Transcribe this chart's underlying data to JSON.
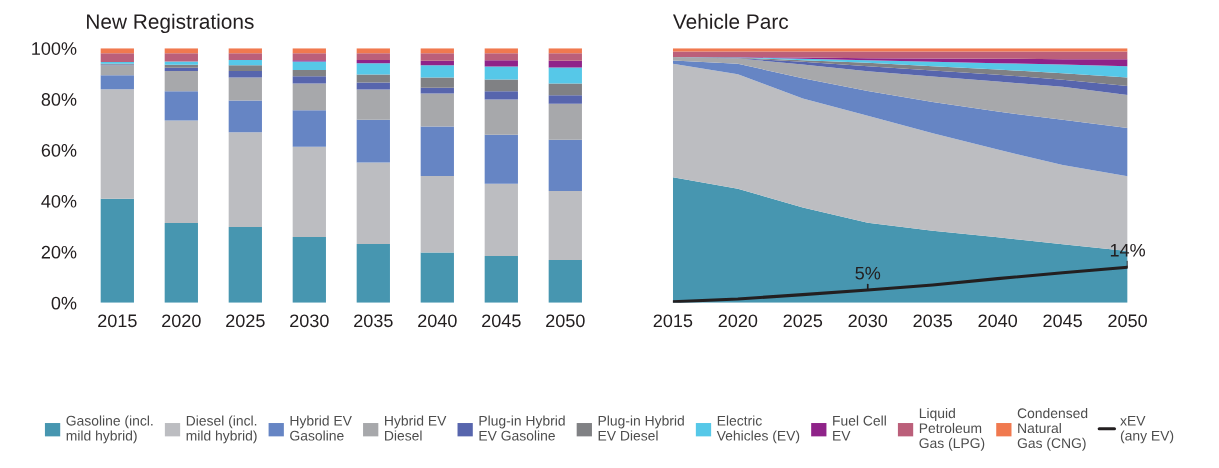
{
  "chart_data": [
    {
      "type": "bar",
      "title": "New Registrations",
      "stacked": true,
      "legend": "bottom",
      "grid": false,
      "categories": [
        "2015",
        "2020",
        "2025",
        "2030",
        "2035",
        "2040",
        "2045",
        "2050"
      ],
      "ylim": [
        0,
        100
      ],
      "yticks": [
        {
          "value": 0,
          "label": "0%"
        },
        {
          "value": 20,
          "label": "20%"
        },
        {
          "value": 40,
          "label": "40%"
        },
        {
          "value": 60,
          "label": "60%"
        },
        {
          "value": 80,
          "label": "80%"
        },
        {
          "value": 100,
          "label": "100%"
        }
      ],
      "series": [
        {
          "name": "Gasoline (incl.\nmild hybrid)",
          "color": "#4796b0",
          "values": [
            40.9,
            31.3,
            29.8,
            25.8,
            23.1,
            19.8,
            18.4,
            16.8
          ]
        },
        {
          "name": "Diesel (incl.\nmild hybrid)",
          "color": "#bcbdc1",
          "values": [
            43.0,
            40.3,
            37.2,
            35.5,
            32.0,
            30.0,
            28.4,
            27.1
          ]
        },
        {
          "name": "Hybrid EV\nGasoline",
          "color": "#6685c4",
          "values": [
            5.5,
            11.5,
            12.5,
            14.3,
            16.8,
            19.4,
            19.2,
            20.1
          ]
        },
        {
          "name": "Hybrid EV\nDiesel",
          "color": "#a7a8ab",
          "values": [
            3.9,
            7.9,
            9.0,
            10.5,
            11.9,
            13.0,
            13.9,
            14.2
          ]
        },
        {
          "name": "Plug-in Hybrid\nEV Gasoline",
          "color": "#5765ad",
          "values": [
            0.3,
            1.3,
            2.5,
            2.9,
            2.7,
            2.3,
            3.2,
            3.3
          ]
        },
        {
          "name": "Plug-in Hybrid\nEV Diesel",
          "color": "#808184",
          "values": [
            0.3,
            1.2,
            2.3,
            2.4,
            3.2,
            4.0,
            4.6,
            4.6
          ]
        },
        {
          "name": "Electric\nVehicles (EV)",
          "color": "#56c8e8",
          "values": [
            0.7,
            1.3,
            2.1,
            3.4,
            4.4,
            4.8,
            5.1,
            6.3
          ]
        },
        {
          "name": "Fuel Cell\nEV",
          "color": "#8f2389",
          "values": [
            0,
            0,
            0,
            0.5,
            1.3,
            1.8,
            2.5,
            2.7
          ]
        },
        {
          "name": "Liquid\nPetroleum\nGas (LPG)",
          "color": "#bb5f7a",
          "values": [
            3.4,
            3.2,
            2.6,
            2.7,
            2.6,
            2.9,
            2.7,
            2.9
          ]
        },
        {
          "name": "Condensed\nNatural\nGas (CNG)",
          "color": "#f0794f",
          "values": [
            2.0,
            2.0,
            2.0,
            2.0,
            2.0,
            2.0,
            2.0,
            2.0
          ]
        }
      ]
    },
    {
      "type": "area",
      "title": "Vehicle Parc",
      "stacked": true,
      "legend": "bottom",
      "grid": false,
      "tick_labels": "x",
      "x": [
        2015,
        2020,
        2025,
        2030,
        2035,
        2040,
        2045,
        2050
      ],
      "xlim": [
        2015,
        2050
      ],
      "xticks": [
        2015,
        2020,
        2025,
        2030,
        2035,
        2040,
        2045,
        2050
      ],
      "ylim": [
        0,
        100
      ],
      "annotations": [
        {
          "text": "5%",
          "x": 2030,
          "y": 5
        },
        {
          "text": "14%",
          "x": 2050,
          "y": 14
        }
      ],
      "series": [
        {
          "name": "Gasoline (incl.\nmild hybrid)",
          "color": "#4796b0",
          "values": [
            49.3,
            44.8,
            37.4,
            31.4,
            28.3,
            25.7,
            23.0,
            20.3
          ]
        },
        {
          "name": "Diesel (incl.\nmild hybrid)",
          "color": "#bcbdc1",
          "values": [
            44.6,
            45.0,
            42.8,
            42.1,
            38.3,
            34.5,
            31.1,
            29.4
          ]
        },
        {
          "name": "Hybrid EV\nGasoline",
          "color": "#6685c4",
          "values": [
            1.3,
            4.1,
            8.0,
            9.7,
            12.3,
            14.9,
            17.8,
            19.0
          ]
        },
        {
          "name": "Hybrid EV\nDiesel",
          "color": "#a7a8ab",
          "values": [
            1.3,
            2.1,
            5.4,
            7.7,
            10.0,
            11.8,
            13.0,
            12.9
          ]
        },
        {
          "name": "Plug-in Hybrid\nEV Gasoline",
          "color": "#5765ad",
          "values": [
            0,
            0.1,
            1.1,
            2.0,
            2.3,
            2.7,
            2.7,
            3.6
          ]
        },
        {
          "name": "Plug-in Hybrid\nEV Diesel",
          "color": "#808184",
          "values": [
            0,
            0.2,
            0.6,
            1.4,
            1.7,
            2.0,
            2.6,
            3.3
          ]
        },
        {
          "name": "Electric\nVehicles (EV)",
          "color": "#56c8e8",
          "values": [
            0,
            0.1,
            0.6,
            1.0,
            1.8,
            2.5,
            3.4,
            4.4
          ]
        },
        {
          "name": "Fuel Cell\nEV",
          "color": "#8f2389",
          "values": [
            0,
            0.1,
            0.4,
            0.8,
            1.3,
            1.8,
            2.1,
            2.8
          ]
        },
        {
          "name": "Liquid\nPetroleum\nGas (LPG)",
          "color": "#bb5f7a",
          "values": [
            2.2,
            2.2,
            2.4,
            2.6,
            2.7,
            2.8,
            3.0,
            3.0
          ]
        },
        {
          "name": "Condensed\nNatural\nGas (CNG)",
          "color": "#f0794f",
          "values": [
            1.3,
            1.3,
            1.3,
            1.3,
            1.3,
            1.3,
            1.3,
            1.3
          ]
        },
        {
          "name": "xEV\n(any EV)",
          "type": "line",
          "color": "#231f20",
          "line_style": "solid",
          "values": [
            0.4,
            1.5,
            3.2,
            5,
            7.0,
            9.5,
            11.8,
            14
          ]
        }
      ]
    }
  ]
}
